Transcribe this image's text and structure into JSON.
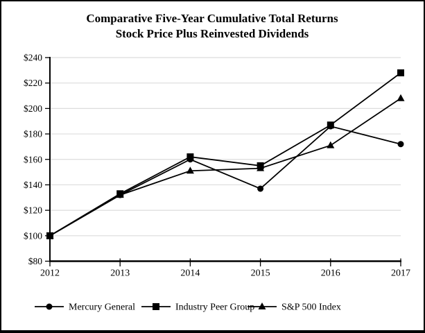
{
  "title": {
    "line1": "Comparative Five-Year Cumulative Total Returns",
    "line2": "Stock Price Plus Reinvested Dividends"
  },
  "chart_data": {
    "type": "line",
    "title": "Comparative Five-Year Cumulative Total Returns",
    "subtitle": "Stock Price Plus Reinvested Dividends",
    "categories": [
      "2012",
      "2013",
      "2014",
      "2015",
      "2016",
      "2017"
    ],
    "series": [
      {
        "name": "Mercury General",
        "marker": "circle",
        "values": [
          100,
          132,
          160,
          137,
          186,
          172
        ]
      },
      {
        "name": "Industry Peer Group",
        "marker": "square",
        "values": [
          100,
          133,
          162,
          155,
          187,
          228
        ]
      },
      {
        "name": "S&P 500 Index",
        "marker": "triangle",
        "values": [
          100,
          132,
          151,
          153,
          171,
          208
        ]
      }
    ],
    "ylim": [
      80,
      240
    ],
    "ytick_step": 20,
    "ytick_labels": [
      "$80",
      "$100",
      "$120",
      "$140",
      "$160",
      "$180",
      "$200",
      "$220",
      "$240"
    ],
    "grid": "horizontal",
    "legend_position": "bottom",
    "line_color": "#000000",
    "grid_color": "#dcdcdc",
    "background_color": "#ffffff"
  }
}
